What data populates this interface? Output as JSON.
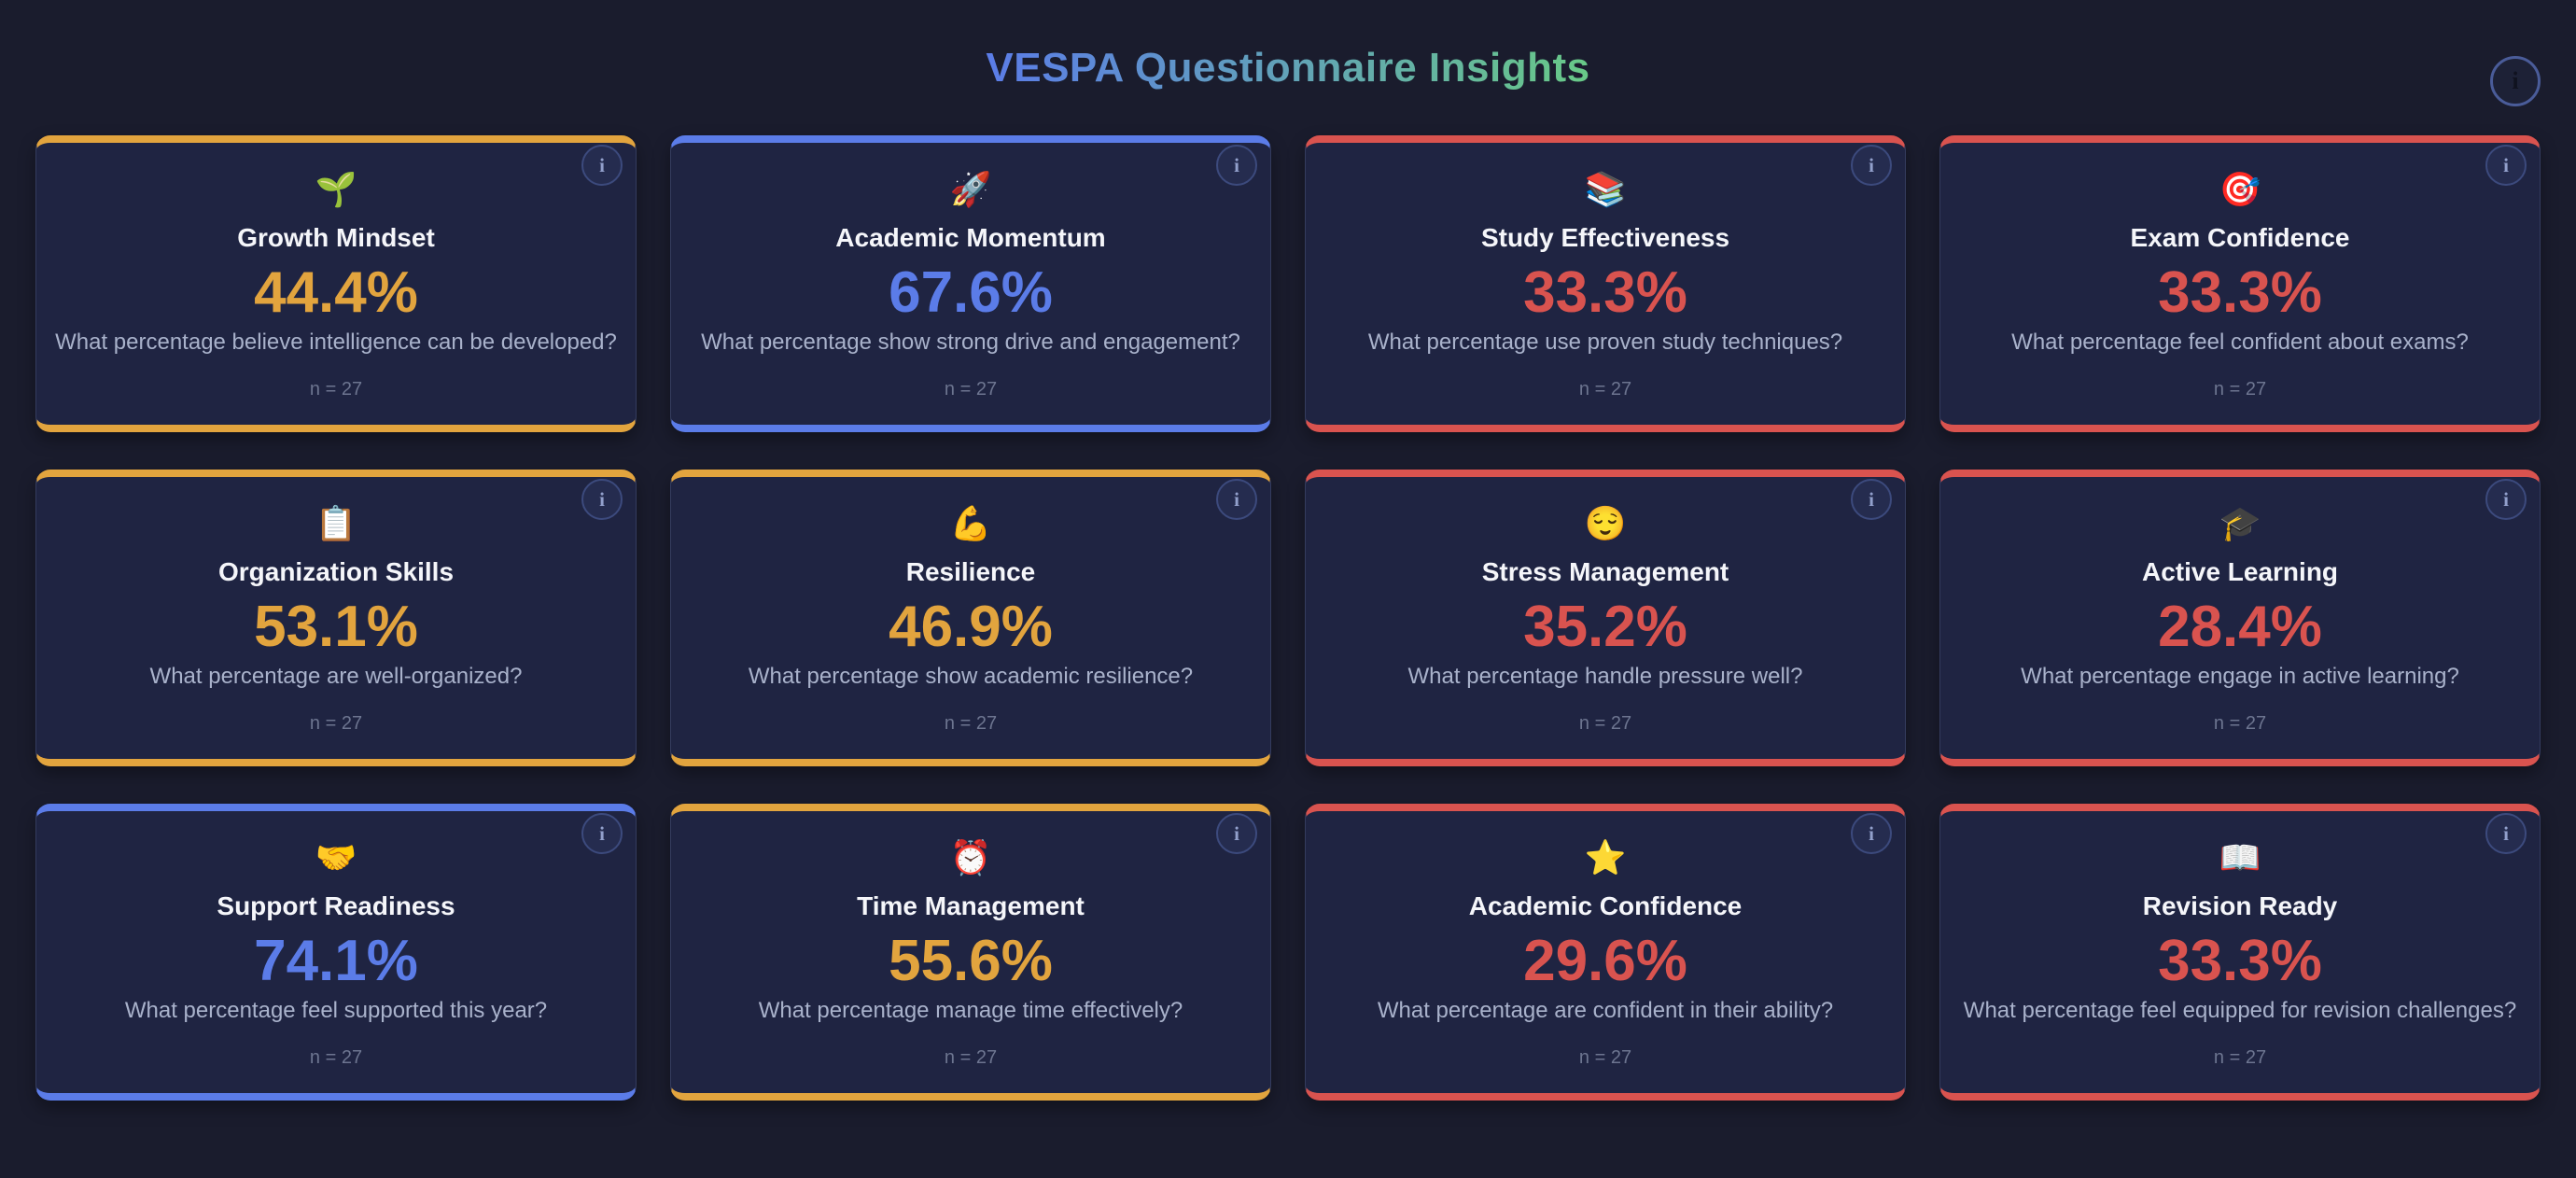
{
  "page": {
    "title": "VESPA Questionnaire Insights",
    "info_glyph": "i"
  },
  "colors": {
    "amber": "#e2a43e",
    "blue": "#5b7ce8",
    "red": "#d9534f",
    "title_grad_start": "#5b7ce8",
    "title_grad_end": "#68c987"
  },
  "cards": [
    {
      "icon": "🌱",
      "icon_name": "seedling-icon",
      "title": "Growth Mindset",
      "value": "44.4%",
      "color": "amber",
      "question": "What percentage believe intelligence can be developed?",
      "sample": "n = 27"
    },
    {
      "icon": "🚀",
      "icon_name": "rocket-icon",
      "title": "Academic Momentum",
      "value": "67.6%",
      "color": "blue",
      "question": "What percentage show strong drive and engagement?",
      "sample": "n = 27"
    },
    {
      "icon": "📚",
      "icon_name": "books-icon",
      "title": "Study Effectiveness",
      "value": "33.3%",
      "color": "red",
      "question": "What percentage use proven study techniques?",
      "sample": "n = 27"
    },
    {
      "icon": "🎯",
      "icon_name": "target-icon",
      "title": "Exam Confidence",
      "value": "33.3%",
      "color": "red",
      "question": "What percentage feel confident about exams?",
      "sample": "n = 27"
    },
    {
      "icon": "📋",
      "icon_name": "clipboard-icon",
      "title": "Organization Skills",
      "value": "53.1%",
      "color": "amber",
      "question": "What percentage are well-organized?",
      "sample": "n = 27"
    },
    {
      "icon": "💪",
      "icon_name": "flexed-biceps-icon",
      "title": "Resilience",
      "value": "46.9%",
      "color": "amber",
      "question": "What percentage show academic resilience?",
      "sample": "n = 27"
    },
    {
      "icon": "😌",
      "icon_name": "relieved-face-icon",
      "title": "Stress Management",
      "value": "35.2%",
      "color": "red",
      "question": "What percentage handle pressure well?",
      "sample": "n = 27"
    },
    {
      "icon": "🎓",
      "icon_name": "graduation-cap-icon",
      "title": "Active Learning",
      "value": "28.4%",
      "color": "red",
      "question": "What percentage engage in active learning?",
      "sample": "n = 27"
    },
    {
      "icon": "🤝",
      "icon_name": "handshake-icon",
      "title": "Support Readiness",
      "value": "74.1%",
      "color": "blue",
      "question": "What percentage feel supported this year?",
      "sample": "n = 27"
    },
    {
      "icon": "⏰",
      "icon_name": "alarm-clock-icon",
      "title": "Time Management",
      "value": "55.6%",
      "color": "amber",
      "question": "What percentage manage time effectively?",
      "sample": "n = 27"
    },
    {
      "icon": "⭐",
      "icon_name": "star-icon",
      "title": "Academic Confidence",
      "value": "29.6%",
      "color": "red",
      "question": "What percentage are confident in their ability?",
      "sample": "n = 27"
    },
    {
      "icon": "📖",
      "icon_name": "open-book-icon",
      "title": "Revision Ready",
      "value": "33.3%",
      "color": "red",
      "question": "What percentage feel equipped for revision challenges?",
      "sample": "n = 27"
    }
  ]
}
